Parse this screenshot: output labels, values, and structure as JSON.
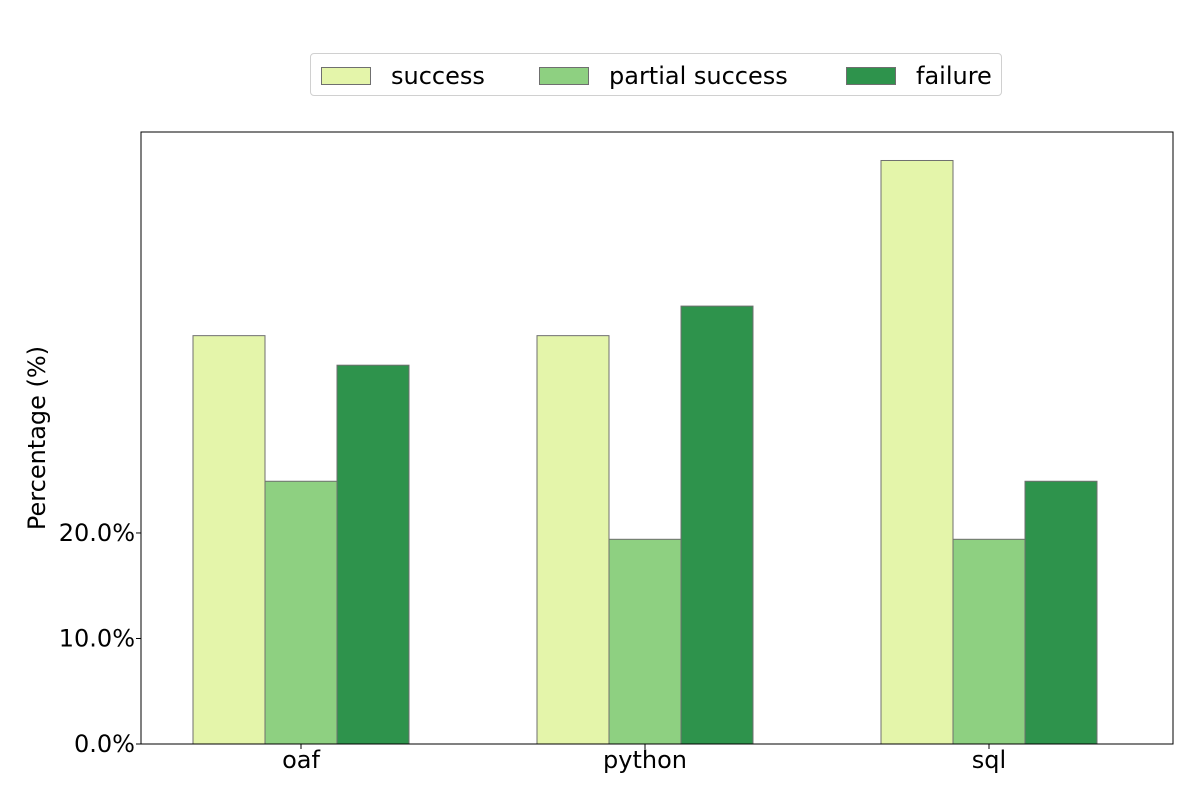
{
  "chart_data": {
    "type": "bar",
    "title": "",
    "xlabel": "",
    "ylabel": "Percentage (%)",
    "categories": [
      "oaf",
      "python",
      "sql"
    ],
    "series": [
      {
        "name": "success",
        "color": "#e4f5aa",
        "values": [
          38.7,
          38.7,
          55.3
        ]
      },
      {
        "name": "partial success",
        "color": "#8ed081",
        "values": [
          24.9,
          19.4,
          19.4
        ]
      },
      {
        "name": "failure",
        "color": "#2e934c",
        "values": [
          35.9,
          41.5,
          24.9
        ]
      }
    ],
    "yticks": [
      {
        "value": 0,
        "label": "0.0%"
      },
      {
        "value": 10,
        "label": "10.0%"
      },
      {
        "value": 20,
        "label": "20.0%"
      }
    ],
    "ylim": [
      0,
      58
    ],
    "grid": false,
    "legend_position": "top-center"
  }
}
